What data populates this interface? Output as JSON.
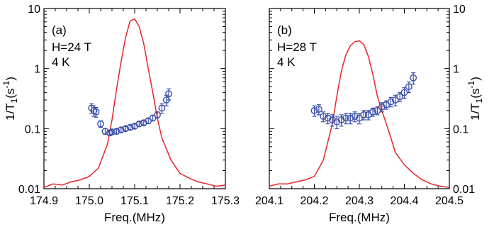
{
  "chart_data": [
    {
      "type": "scatter",
      "panel_label": "(a)",
      "annotations": [
        "H=24 T",
        "4 K"
      ],
      "xlabel": "Freq.(MHz)",
      "ylabel": "1/T",
      "ylabel_sub": "1",
      "ylabel_unit": "(s",
      "ylabel_unit_sup": "-1",
      "ylabel_close": ")",
      "yscale": "log",
      "xlim": [
        174.9,
        175.3
      ],
      "ylim": [
        0.01,
        10
      ],
      "xticks": [
        "174.9",
        "175.0",
        "175.1",
        "175.2",
        "175.3"
      ],
      "yticks": [
        "0.01",
        "0.1",
        "1",
        "10"
      ],
      "xticks_values": [
        174.9,
        175.0,
        175.1,
        175.2,
        175.3
      ],
      "yticks_values": [
        0.01,
        0.1,
        1,
        10
      ],
      "spectrum": {
        "color": "#e8262a",
        "x": [
          174.9,
          174.92,
          174.94,
          174.96,
          174.98,
          175.0,
          175.02,
          175.04,
          175.05,
          175.06,
          175.07,
          175.08,
          175.09,
          175.1,
          175.11,
          175.12,
          175.13,
          175.14,
          175.15,
          175.16,
          175.18,
          175.2,
          175.22,
          175.24,
          175.26,
          175.28,
          175.3
        ],
        "y": [
          0.0105,
          0.012,
          0.0115,
          0.013,
          0.014,
          0.016,
          0.022,
          0.055,
          0.14,
          0.45,
          1.3,
          3.3,
          6.2,
          6.7,
          5.0,
          2.6,
          1.0,
          0.4,
          0.15,
          0.07,
          0.03,
          0.018,
          0.015,
          0.013,
          0.012,
          0.011,
          0.0115
        ]
      },
      "t1": {
        "color": "#3a4fa8",
        "x": [
          175.005,
          175.01,
          175.015,
          175.025,
          175.035,
          175.045,
          175.05,
          175.06,
          175.07,
          175.08,
          175.09,
          175.1,
          175.11,
          175.12,
          175.13,
          175.14,
          175.15,
          175.16,
          175.17,
          175.175
        ],
        "y": [
          0.22,
          0.2,
          0.19,
          0.12,
          0.09,
          0.085,
          0.088,
          0.09,
          0.095,
          0.1,
          0.105,
          0.11,
          0.12,
          0.125,
          0.135,
          0.15,
          0.17,
          0.22,
          0.3,
          0.38
        ],
        "err": [
          0.04,
          0.04,
          0.035,
          0.015,
          0.01,
          0.008,
          0.008,
          0.008,
          0.008,
          0.008,
          0.009,
          0.009,
          0.01,
          0.01,
          0.012,
          0.015,
          0.02,
          0.04,
          0.06,
          0.08
        ]
      }
    },
    {
      "type": "scatter",
      "panel_label": "(b)",
      "annotations": [
        "H=28 T",
        "4 K"
      ],
      "xlabel": "Freq.(MHz)",
      "ylabel": "1/T",
      "ylabel_sub": "1",
      "ylabel_unit": "(s",
      "ylabel_unit_sup": "-1",
      "ylabel_close": ")",
      "yscale": "log",
      "xlim": [
        204.1,
        204.5
      ],
      "ylim": [
        0.01,
        10
      ],
      "xticks": [
        "204.1",
        "204.2",
        "204.3",
        "204.4",
        "204.5"
      ],
      "yticks": [
        "0.01",
        "0.1",
        "1",
        "10"
      ],
      "xticks_values": [
        204.1,
        204.2,
        204.3,
        204.4,
        204.5
      ],
      "yticks_values": [
        0.01,
        0.1,
        1,
        10
      ],
      "spectrum": {
        "color": "#e8262a",
        "x": [
          204.1,
          204.12,
          204.14,
          204.16,
          204.18,
          204.2,
          204.22,
          204.24,
          204.25,
          204.26,
          204.27,
          204.28,
          204.29,
          204.3,
          204.31,
          204.32,
          204.33,
          204.34,
          204.35,
          204.36,
          204.37,
          204.38,
          204.4,
          204.42,
          204.44,
          204.46,
          204.48,
          204.5
        ],
        "y": [
          0.011,
          0.012,
          0.012,
          0.013,
          0.014,
          0.016,
          0.03,
          0.12,
          0.35,
          0.9,
          1.7,
          2.4,
          2.8,
          2.9,
          2.5,
          1.6,
          0.8,
          0.35,
          0.2,
          0.12,
          0.07,
          0.04,
          0.025,
          0.018,
          0.014,
          0.012,
          0.011,
          0.0105
        ]
      },
      "t1": {
        "color": "#3a4fa8",
        "x": [
          204.2,
          204.21,
          204.22,
          204.23,
          204.24,
          204.25,
          204.26,
          204.27,
          204.28,
          204.29,
          204.3,
          204.31,
          204.32,
          204.33,
          204.34,
          204.35,
          204.36,
          204.37,
          204.38,
          204.39,
          204.4,
          204.41,
          204.42
        ],
        "y": [
          0.2,
          0.21,
          0.16,
          0.15,
          0.14,
          0.13,
          0.14,
          0.15,
          0.15,
          0.16,
          0.15,
          0.17,
          0.17,
          0.19,
          0.2,
          0.23,
          0.25,
          0.28,
          0.3,
          0.34,
          0.4,
          0.5,
          0.7
        ],
        "err": [
          0.04,
          0.04,
          0.03,
          0.03,
          0.03,
          0.03,
          0.03,
          0.03,
          0.03,
          0.03,
          0.03,
          0.03,
          0.03,
          0.03,
          0.03,
          0.04,
          0.04,
          0.05,
          0.06,
          0.06,
          0.08,
          0.1,
          0.15
        ]
      }
    }
  ]
}
